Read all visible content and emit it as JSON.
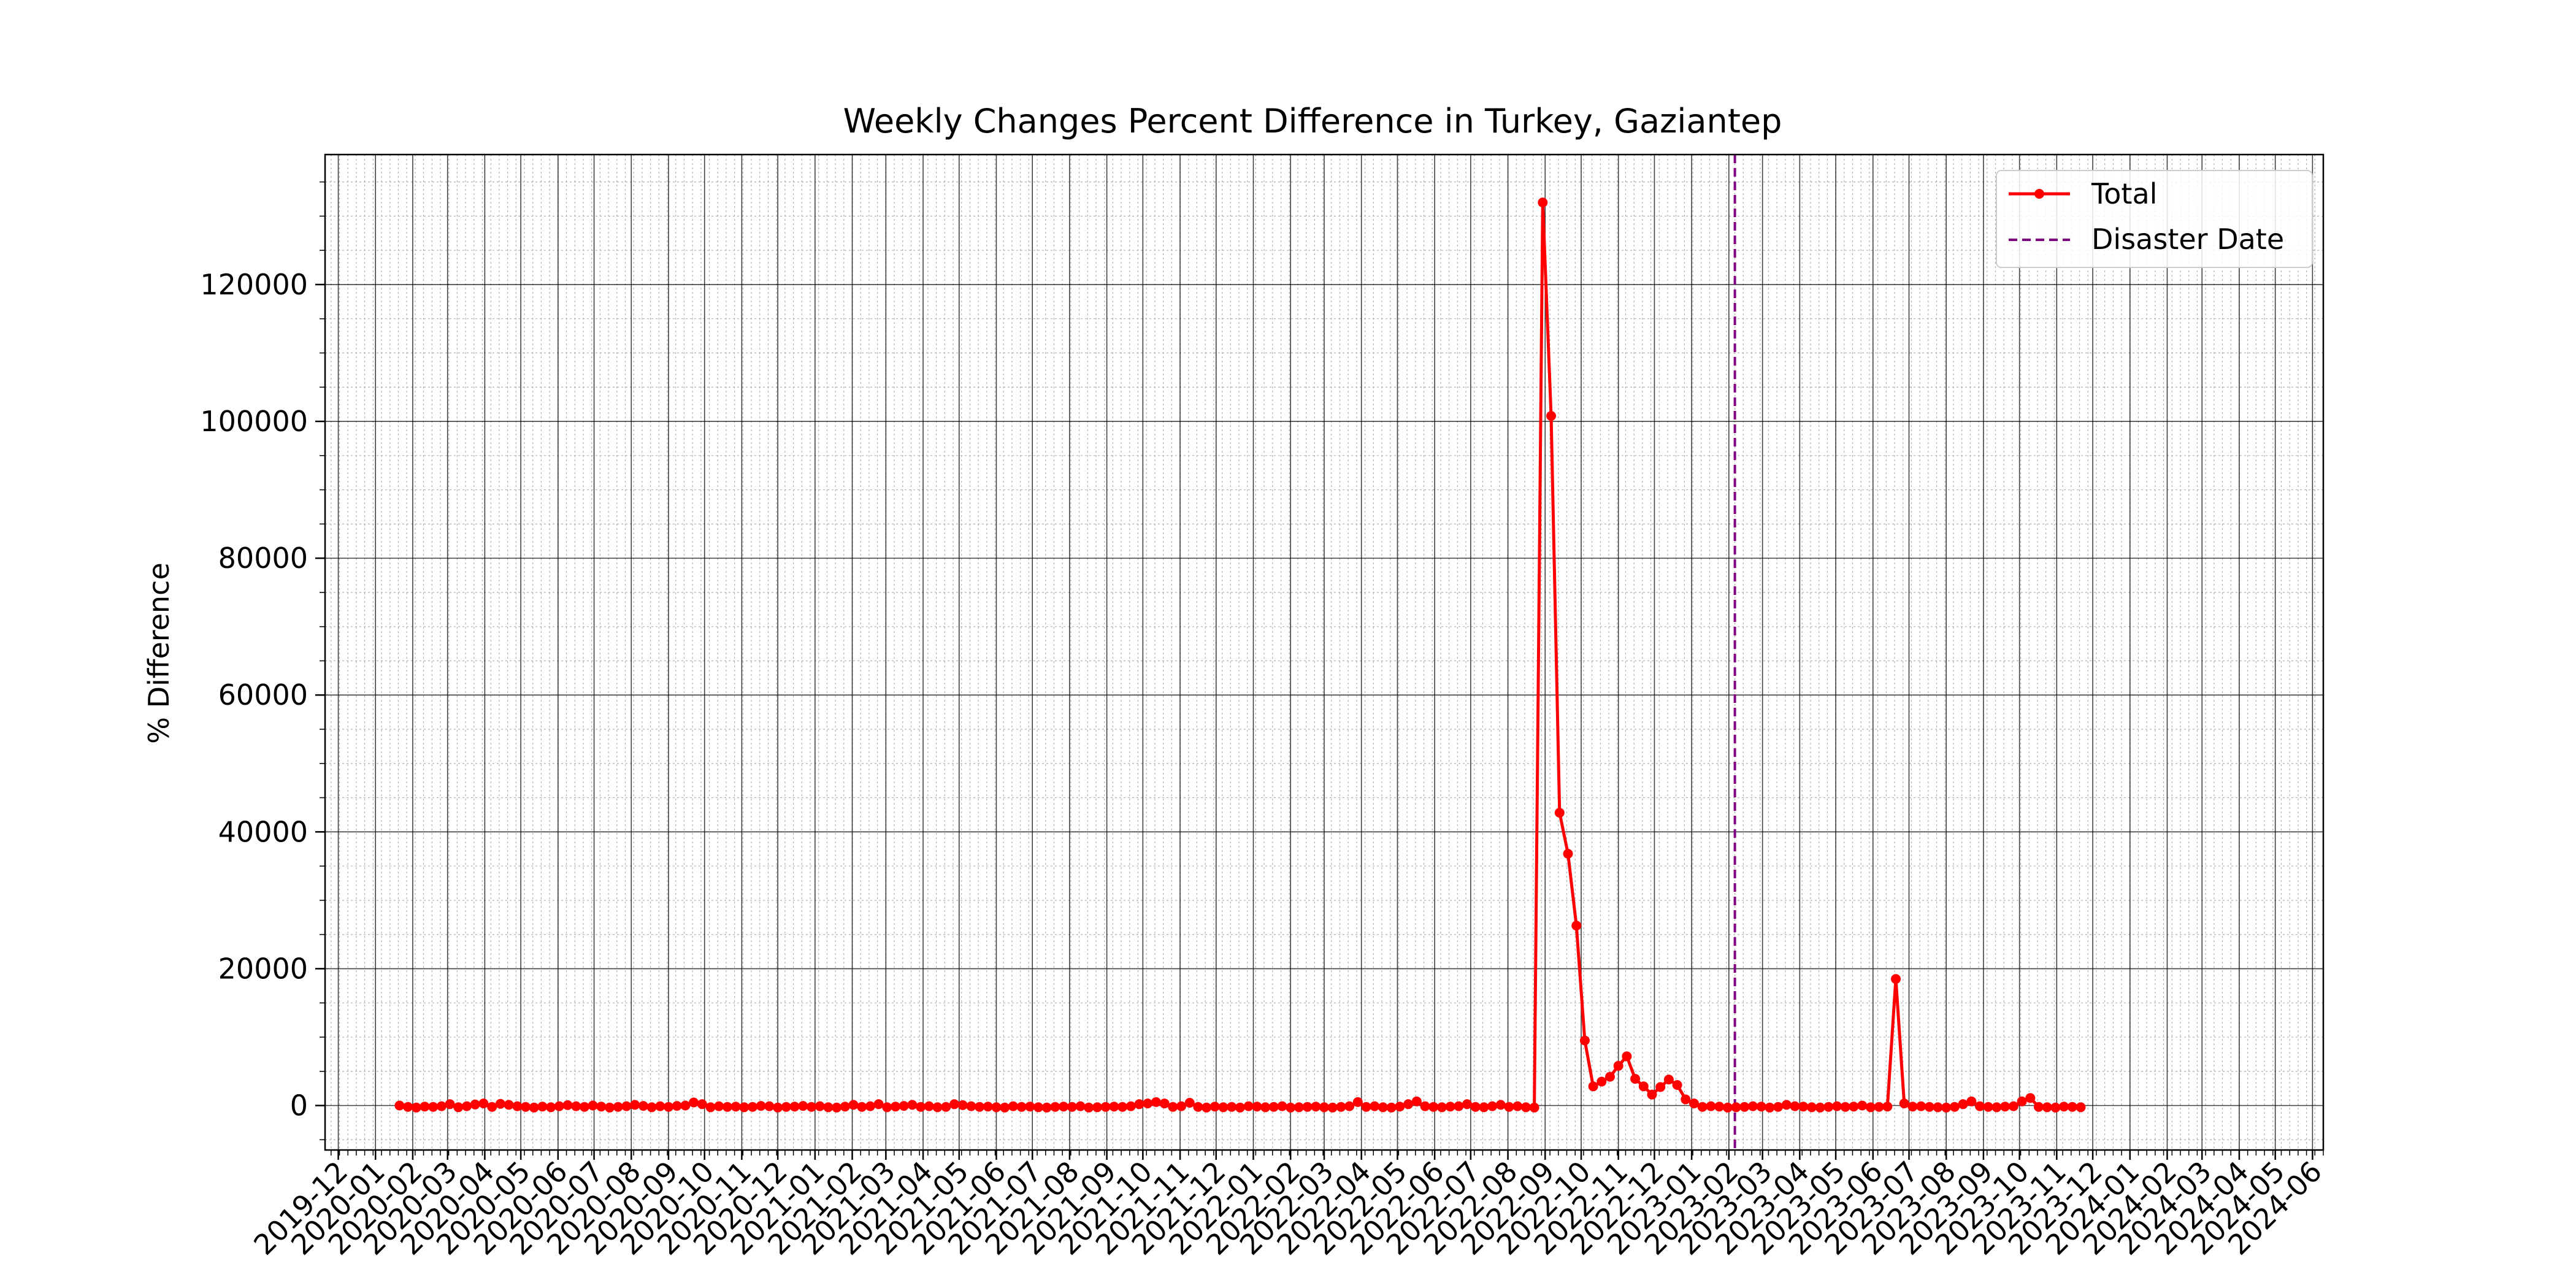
{
  "chart_data": {
    "type": "line",
    "title": "Weekly Changes Percent Difference in Turkey, Gaziantep",
    "xlabel": "",
    "ylabel": "% Difference",
    "x_type": "date",
    "xlim": [
      "2019-11-20",
      "2024-06-10"
    ],
    "ylim": [
      -6500,
      139000
    ],
    "x_ticks": [
      "2019-12",
      "2020-01",
      "2020-02",
      "2020-03",
      "2020-04",
      "2020-05",
      "2020-06",
      "2020-07",
      "2020-08",
      "2020-09",
      "2020-10",
      "2020-11",
      "2020-12",
      "2021-01",
      "2021-02",
      "2021-03",
      "2021-04",
      "2021-05",
      "2021-06",
      "2021-07",
      "2021-08",
      "2021-09",
      "2021-10",
      "2021-11",
      "2021-12",
      "2022-01",
      "2022-02",
      "2022-03",
      "2022-04",
      "2022-05",
      "2022-06",
      "2022-07",
      "2022-08",
      "2022-09",
      "2022-10",
      "2022-11",
      "2022-12",
      "2023-01",
      "2023-02",
      "2023-03",
      "2023-04",
      "2023-05",
      "2023-06",
      "2023-07",
      "2023-08",
      "2023-09",
      "2023-10",
      "2023-11",
      "2023-12",
      "2024-01",
      "2024-02",
      "2024-03",
      "2024-04",
      "2024-05",
      "2024-06"
    ],
    "y_ticks": [
      0,
      20000,
      40000,
      60000,
      80000,
      100000,
      120000
    ],
    "grid": true,
    "minor_grid": true,
    "legend_position": "upper right",
    "series": [
      {
        "name": "Total",
        "color": "#ff0000",
        "marker": "circle",
        "start_date": "2020-01-21",
        "interval_days": 7,
        "values": [
          0,
          -200,
          -300,
          -150,
          -200,
          -100,
          200,
          -250,
          -100,
          150,
          300,
          -200,
          250,
          100,
          -100,
          -200,
          -300,
          -150,
          -250,
          -100,
          50,
          -100,
          -200,
          0,
          -150,
          -300,
          -200,
          -100,
          100,
          -50,
          -250,
          -100,
          -200,
          -50,
          0,
          450,
          200,
          -250,
          -100,
          -200,
          -150,
          -250,
          -200,
          -50,
          -100,
          -300,
          -200,
          -150,
          -50,
          -200,
          -100,
          -250,
          -300,
          -150,
          100,
          -200,
          -100,
          200,
          -250,
          -150,
          -50,
          100,
          -200,
          -100,
          -250,
          -200,
          200,
          50,
          -100,
          -200,
          -150,
          -250,
          -300,
          -100,
          -200,
          -150,
          -250,
          -300,
          -200,
          -150,
          -200,
          -100,
          -300,
          -250,
          -200,
          -150,
          -200,
          -100,
          200,
          300,
          500,
          300,
          -200,
          -100,
          400,
          -200,
          -300,
          -150,
          -250,
          -200,
          -300,
          -100,
          -150,
          -250,
          -200,
          -100,
          -300,
          -250,
          -200,
          -150,
          -250,
          -300,
          -200,
          -100,
          500,
          -200,
          -100,
          -250,
          -300,
          -150,
          200,
          600,
          -100,
          -200,
          -250,
          -150,
          -100,
          200,
          -200,
          -250,
          -100,
          100,
          -200,
          -100,
          -250,
          -300,
          132000,
          100800,
          42800,
          36800,
          26300,
          9500,
          2800,
          3500,
          4200,
          5800,
          7200,
          3900,
          2800,
          1600,
          2700,
          3800,
          3000,
          900,
          300,
          -200,
          -100,
          -150,
          -300,
          -250,
          -200,
          -100,
          -150,
          -300,
          -200,
          100,
          -100,
          -150,
          -250,
          -300,
          -200,
          -100,
          -200,
          -150,
          0,
          -250,
          -200,
          -150,
          18500,
          300,
          -150,
          -100,
          -200,
          -250,
          -300,
          -200,
          200,
          600,
          -100,
          -200,
          -250,
          -150,
          -100,
          600,
          1100,
          -200,
          -250,
          -300,
          -150,
          -200,
          -250
        ]
      }
    ],
    "vlines": [
      {
        "name": "Disaster Date",
        "x": "2023-02-06",
        "color": "#800080",
        "style": "dashed"
      }
    ]
  }
}
